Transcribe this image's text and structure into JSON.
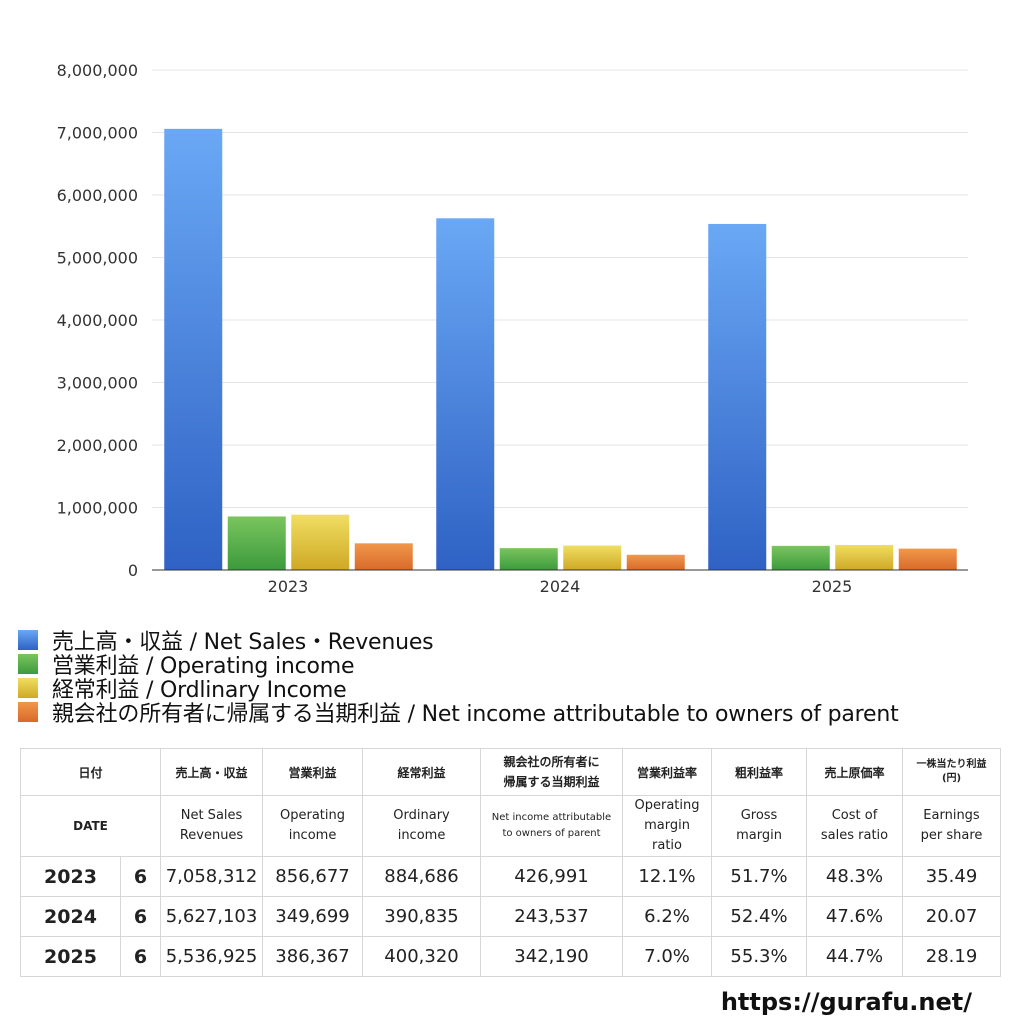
{
  "chart_data": {
    "type": "bar",
    "categories": [
      "2023",
      "2024",
      "2025"
    ],
    "series": [
      {
        "name": "売上高・収益 / Net Sales・Revenues",
        "values": [
          7058312,
          5627103,
          5536925
        ],
        "color_top": "#6aa8f5",
        "color_bottom": "#2f62c4"
      },
      {
        "name": "営業利益 / Operating income",
        "values": [
          856677,
          349699,
          386367
        ],
        "color_top": "#7ac55e",
        "color_bottom": "#3c9a3c"
      },
      {
        "name": "経常利益 / Ordlinary Income",
        "values": [
          884686,
          390835,
          400320
        ],
        "color_top": "#f0de62",
        "color_bottom": "#cfa825"
      },
      {
        "name": "親会社の所有者に帰属する当期利益 / Net income attributable to owners of parent",
        "values": [
          426991,
          243537,
          342190
        ],
        "color_top": "#f0984a",
        "color_bottom": "#d9692a"
      }
    ],
    "ylim": [
      0,
      8000000
    ],
    "yticks": [
      "0",
      "1,000,000",
      "2,000,000",
      "3,000,000",
      "4,000,000",
      "5,000,000",
      "6,000,000",
      "7,000,000",
      "8,000,000"
    ],
    "grid": true,
    "legend_position": "bottom"
  },
  "table": {
    "header_jp": {
      "date": "日付",
      "sales": "売上高・収益",
      "operating": "営業利益",
      "ordinary": "経常利益",
      "net_line1": "親会社の所有者に",
      "net_line2": "帰属する当期利益",
      "op_margin": "営業利益率",
      "gross": "粗利益率",
      "cost": "売上原価率",
      "eps_line1": "一株当たり利益",
      "eps_line2": "(円)"
    },
    "header_en": {
      "date": "DATE",
      "sales_1": "Net Sales",
      "sales_2": "Revenues",
      "operating_1": "Operating",
      "operating_2": "income",
      "ordinary_1": "Ordinary",
      "ordinary_2": "income",
      "net_1": "Net income attributable",
      "net_2": "to owners of parent",
      "op_margin_1": "Operating",
      "op_margin_2": "margin",
      "op_margin_3": "ratio",
      "gross_1": "Gross",
      "gross_2": "margin",
      "cost_1": "Cost of",
      "cost_2": "sales ratio",
      "eps_1": "Earnings",
      "eps_2": "per share"
    },
    "rows": [
      {
        "year": "2023",
        "month": "6",
        "sales": "7,058,312",
        "operating": "856,677",
        "ordinary": "884,686",
        "net": "426,991",
        "op_margin": "12.1%",
        "gross": "51.7%",
        "cost": "48.3%",
        "eps": "35.49"
      },
      {
        "year": "2024",
        "month": "6",
        "sales": "5,627,103",
        "operating": "349,699",
        "ordinary": "390,835",
        "net": "243,537",
        "op_margin": "6.2%",
        "gross": "52.4%",
        "cost": "47.6%",
        "eps": "20.07"
      },
      {
        "year": "2025",
        "month": "6",
        "sales": "5,536,925",
        "operating": "386,367",
        "ordinary": "400,320",
        "net": "342,190",
        "op_margin": "7.0%",
        "gross": "55.3%",
        "cost": "44.7%",
        "eps": "28.19"
      }
    ]
  },
  "footer": {
    "link": "https://gurafu.net/"
  }
}
